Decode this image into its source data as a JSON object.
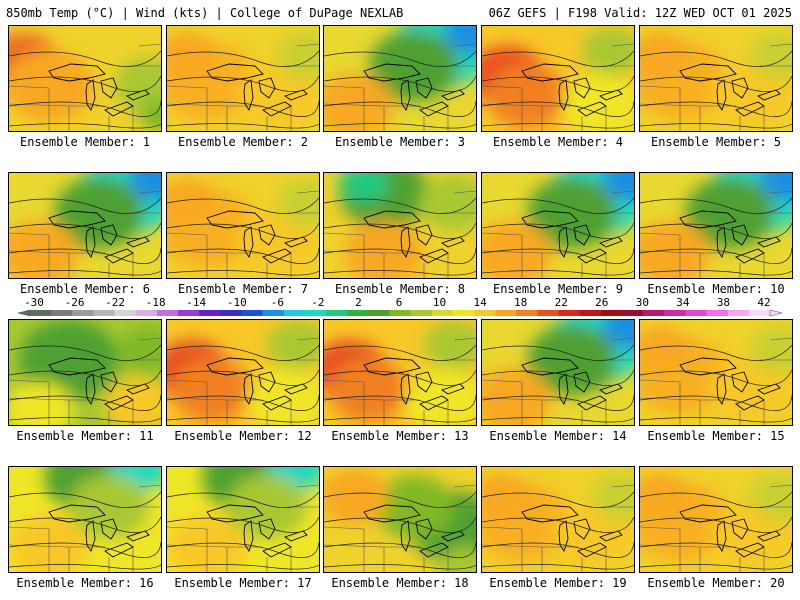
{
  "header": {
    "left": "850mb Temp (°C) | Wind (kts) | College of DuPage NEXLAB",
    "right": "06Z GEFS | F198 Valid: 12Z WED OCT 01 2025"
  },
  "colorbar": {
    "labels": [
      "-30",
      "-26",
      "-22",
      "-18",
      "-14",
      "-10",
      "-6",
      "-2",
      "2",
      "6",
      "10",
      "14",
      "18",
      "22",
      "26",
      "30",
      "34",
      "38",
      "42"
    ],
    "colors": [
      "#5a6e5e",
      "#7a7a7a",
      "#9a9a9a",
      "#b6b6b6",
      "#d4d4d4",
      "#d8b0e8",
      "#c070e0",
      "#9a3ad8",
      "#6a1fc8",
      "#3a2fc0",
      "#1f50d8",
      "#1f90e0",
      "#20c8e8",
      "#20d8c0",
      "#20c880",
      "#30b040",
      "#50a030",
      "#80b828",
      "#a8c830",
      "#d8d830",
      "#f0e628",
      "#f8c828",
      "#f8a820",
      "#f08020",
      "#e85020",
      "#d82818",
      "#c01818",
      "#a01010",
      "#980c30",
      "#b81870",
      "#d028a8",
      "#e048d0",
      "#f070e8",
      "#f8a8f0",
      "#fcd8f8"
    ]
  },
  "panels": [
    {
      "label": "Ensemble Member: 1",
      "scheme": "warm-west"
    },
    {
      "label": "Ensemble Member: 2",
      "scheme": "warm"
    },
    {
      "label": "Ensemble Member: 3",
      "scheme": "cold-ne"
    },
    {
      "label": "Ensemble Member: 4",
      "scheme": "hot-west"
    },
    {
      "label": "Ensemble Member: 5",
      "scheme": "warm"
    },
    {
      "label": "Ensemble Member: 6",
      "scheme": "cold-ne"
    },
    {
      "label": "Ensemble Member: 7",
      "scheme": "warm"
    },
    {
      "label": "Ensemble Member: 8",
      "scheme": "mixed"
    },
    {
      "label": "Ensemble Member: 9",
      "scheme": "cold-ne"
    },
    {
      "label": "Ensemble Member: 10",
      "scheme": "cold-ne"
    },
    {
      "label": "Ensemble Member: 11",
      "scheme": "cool"
    },
    {
      "label": "Ensemble Member: 12",
      "scheme": "hot-west"
    },
    {
      "label": "Ensemble Member: 13",
      "scheme": "hot-west"
    },
    {
      "label": "Ensemble Member: 14",
      "scheme": "cold-ne"
    },
    {
      "label": "Ensemble Member: 15",
      "scheme": "warm"
    },
    {
      "label": "Ensemble Member: 16",
      "scheme": "cool-n"
    },
    {
      "label": "Ensemble Member: 17",
      "scheme": "cool-n"
    },
    {
      "label": "Ensemble Member: 18",
      "scheme": "cool-e"
    },
    {
      "label": "Ensemble Member: 19",
      "scheme": "warm"
    },
    {
      "label": "Ensemble Member: 20",
      "scheme": "warm"
    }
  ]
}
